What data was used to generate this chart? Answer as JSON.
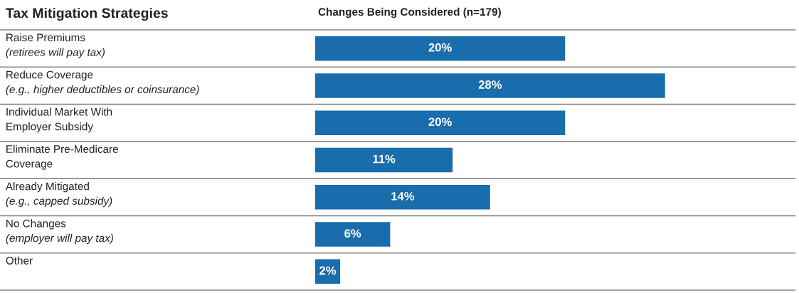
{
  "chart_data": {
    "type": "bar",
    "orientation": "horizontal",
    "title": "Tax Mitigation Strategies",
    "subtitle": "Changes Being Considered (n=179)",
    "categories": [
      "Raise Premiums\n(retirees will pay tax)",
      "Reduce Coverage\n(e.g., higher deductibles or coinsurance)",
      "Individual Market With\nEmployer Subsidy",
      "Eliminate Pre-Medicare\nCoverage",
      "Already Mitigated\n(e.g., capped subsidy)",
      "No Changes\n(employer will pay tax)",
      "Other"
    ],
    "values": [
      20,
      28,
      20,
      11,
      14,
      6,
      2
    ],
    "value_labels": [
      "20%",
      "28%",
      "20%",
      "11%",
      "14%",
      "6%",
      "2%"
    ],
    "color": "#1a6dac"
  }
}
